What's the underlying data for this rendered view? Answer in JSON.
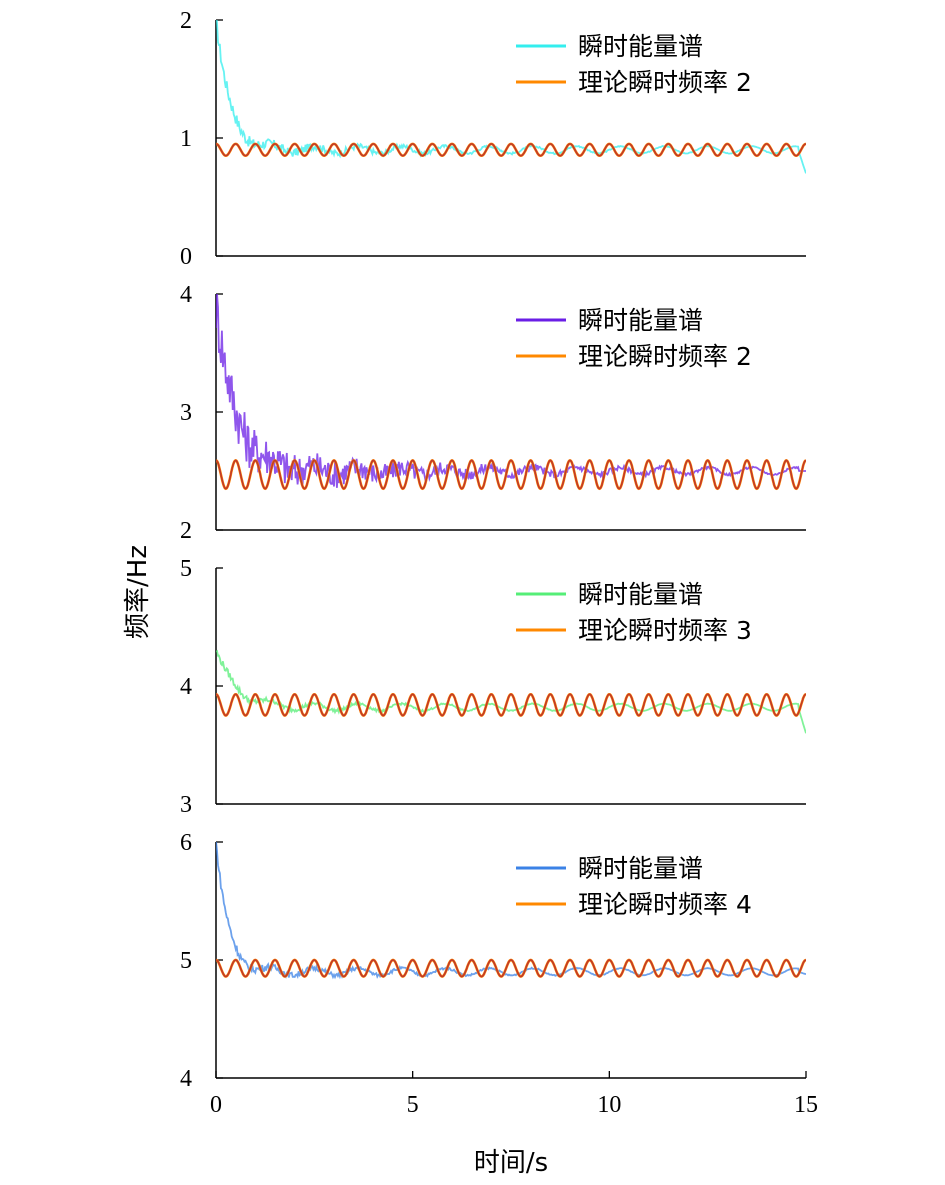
{
  "figure": {
    "ylabel": "频率/Hz",
    "xlabel": "时间/s"
  },
  "chart_data": [
    {
      "type": "line",
      "xlim": [
        0,
        15
      ],
      "ylim": [
        0,
        2
      ],
      "yticks": [
        "0",
        "1",
        "2"
      ],
      "xticks": [],
      "legend_position": "top-right",
      "series": [
        {
          "name": "瞬时能量谱",
          "color": "#33eeee",
          "role": "spectrum",
          "base": 0.9,
          "start": 2.0,
          "decay": 0.35,
          "noise": 0.06,
          "tail": 0.7
        },
        {
          "name": "理论瞬时频率 2",
          "color": "#ff8800",
          "role": "theory",
          "base": 0.9,
          "amp": 0.05,
          "cycles": 30
        }
      ]
    },
    {
      "type": "line",
      "xlim": [
        0,
        15
      ],
      "ylim": [
        2,
        4
      ],
      "yticks": [
        "2",
        "3",
        "4"
      ],
      "xticks": [],
      "legend_position": "top-right",
      "series": [
        {
          "name": "瞬时能量谱",
          "color": "#6a1ee6",
          "role": "spectrum",
          "base": 2.5,
          "start": 3.9,
          "decay": 0.5,
          "noise": 0.25,
          "tail": 2.5
        },
        {
          "name": "理论瞬时频率 2",
          "color": "#ff8800",
          "role": "theory",
          "base": 2.47,
          "amp": 0.12,
          "cycles": 30
        }
      ]
    },
    {
      "type": "line",
      "xlim": [
        0,
        15
      ],
      "ylim": [
        3,
        5
      ],
      "yticks": [
        "3",
        "4",
        "5"
      ],
      "xticks": [],
      "legend_position": "top-right",
      "series": [
        {
          "name": "瞬时能量谱",
          "color": "#55ee77",
          "role": "spectrum",
          "base": 3.82,
          "start": 4.3,
          "decay": 0.5,
          "noise": 0.03,
          "tail": 3.6
        },
        {
          "name": "理论瞬时频率 3",
          "color": "#ff8800",
          "role": "theory",
          "base": 3.84,
          "amp": 0.09,
          "cycles": 30
        }
      ]
    },
    {
      "type": "line",
      "xlim": [
        0,
        15
      ],
      "ylim": [
        4,
        6
      ],
      "yticks": [
        "4",
        "5",
        "6"
      ],
      "xticks": [
        "0",
        "5",
        "10",
        "15"
      ],
      "legend_position": "top-right",
      "series": [
        {
          "name": "瞬时能量谱",
          "color": "#3b82e6",
          "role": "spectrum",
          "base": 4.9,
          "start": 6.0,
          "decay": 0.3,
          "noise": 0.04,
          "tail": 4.88
        },
        {
          "name": "理论瞬时频率 4",
          "color": "#ff8800",
          "role": "theory",
          "base": 4.93,
          "amp": 0.07,
          "cycles": 30
        }
      ]
    }
  ]
}
